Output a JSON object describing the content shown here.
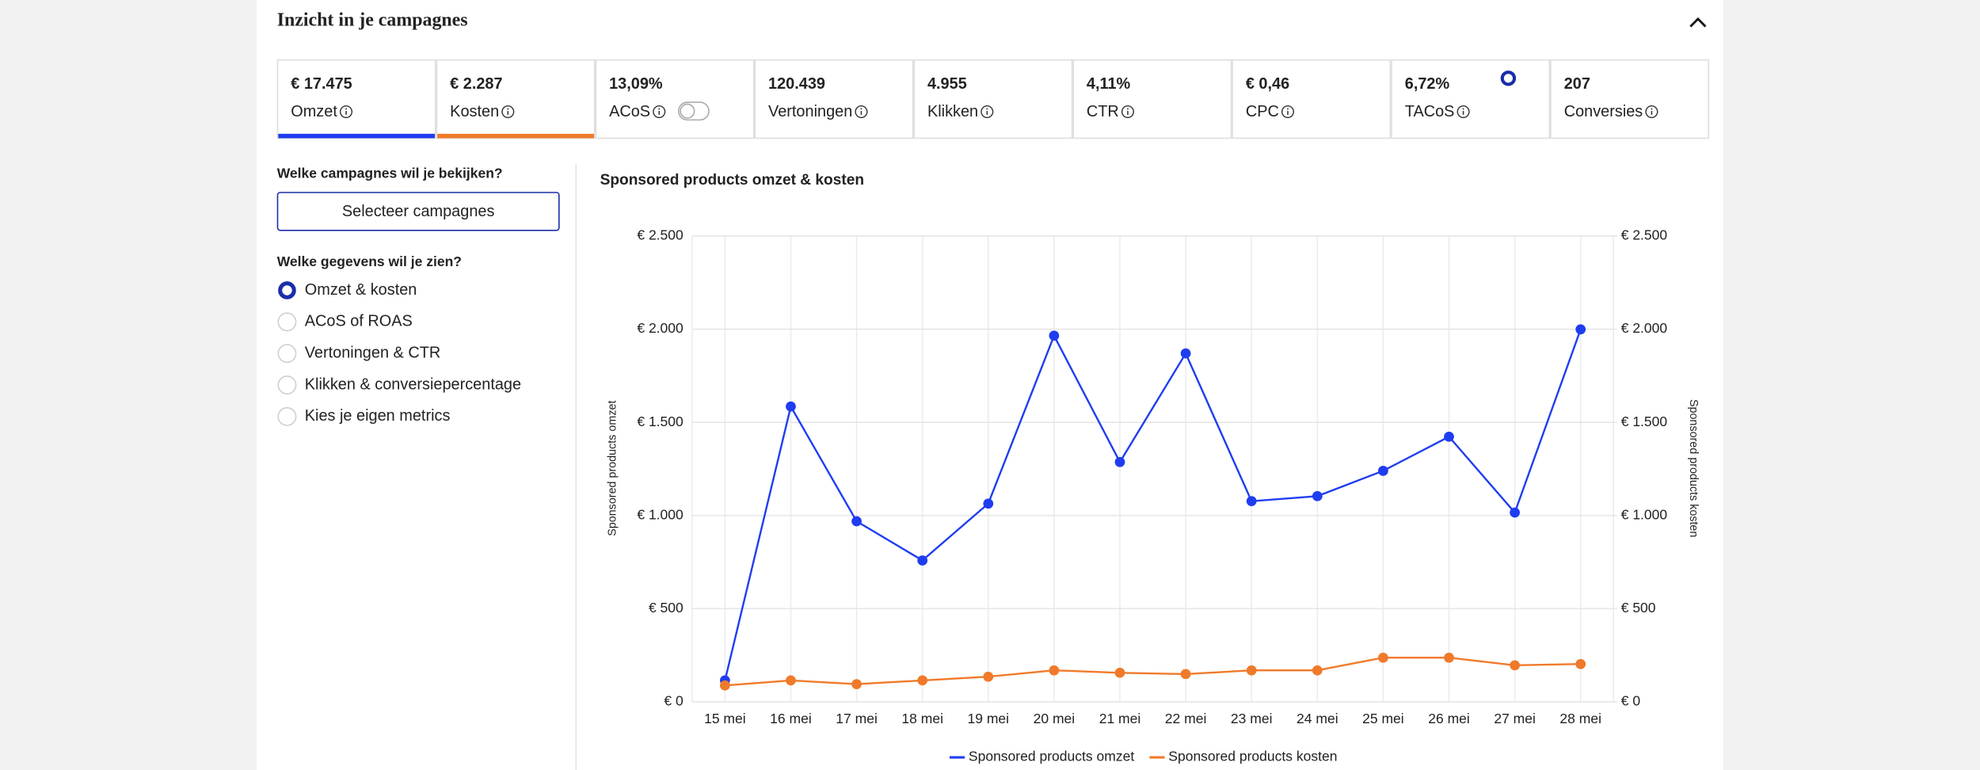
{
  "header": {
    "title": "Inzicht in je campagnes"
  },
  "metrics": [
    {
      "value": "€ 17.475",
      "label": "Omzet"
    },
    {
      "value": "€ 2.287",
      "label": "Kosten"
    },
    {
      "value": "13,09%",
      "label": "ACoS"
    },
    {
      "value": "120.439",
      "label": "Vertoningen"
    },
    {
      "value": "4.955",
      "label": "Klikken"
    },
    {
      "value": "4,11%",
      "label": "CTR"
    },
    {
      "value": "€ 0,46",
      "label": "CPC"
    },
    {
      "value": "6,72%",
      "label": "TACoS"
    },
    {
      "value": "207",
      "label": "Conversies"
    }
  ],
  "sidebar": {
    "campaign_question": "Welke campagnes wil je bekijken?",
    "button": "Selecteer campagnes",
    "data_question": "Welke gegevens wil je zien?",
    "options": [
      "Omzet & kosten",
      "ACoS of ROAS",
      "Vertoningen & CTR",
      "Klikken & conversiepercentage",
      "Kies je eigen metrics"
    ]
  },
  "chart_data": {
    "type": "line",
    "title": "Sponsored products omzet & kosten",
    "categories": [
      "15 mei",
      "16 mei",
      "17 mei",
      "18 mei",
      "19 mei",
      "20 mei",
      "21 mei",
      "22 mei",
      "23 mei",
      "24 mei",
      "25 mei",
      "26 mei",
      "27 mei",
      "28 mei"
    ],
    "series": [
      {
        "name": "Sponsored products omzet",
        "color": "#1f3df0",
        "values": [
          115,
          1585,
          969,
          759,
          1064,
          1965,
          1287,
          1870,
          1077,
          1104,
          1240,
          1423,
          1016,
          1999
        ]
      },
      {
        "name": "Sponsored products kosten",
        "color": "#f07a2a",
        "axis": "y2",
        "values": [
          88,
          115,
          95,
          115,
          135,
          169,
          156,
          149,
          169,
          169,
          237,
          237,
          196,
          203
        ]
      }
    ],
    "y_label": "Sponsored products omzet",
    "y2_label": "Sponsored products kosten",
    "ylim": [
      0,
      2500
    ],
    "yticks": [
      {
        "value": 0,
        "label": "€ 0"
      },
      {
        "value": 500,
        "label": "€ 500"
      },
      {
        "value": 1000,
        "label": "€ 1.000"
      },
      {
        "value": 1500,
        "label": "€ 1.500"
      },
      {
        "value": 2000,
        "label": "€ 2.000"
      },
      {
        "value": 2500,
        "label": "€ 2.500"
      }
    ],
    "y2lim": [
      0,
      2500
    ],
    "y2ticks": [
      {
        "value": 0,
        "label": "€ 0"
      },
      {
        "value": 500,
        "label": "€ 500"
      },
      {
        "value": 1000,
        "label": "€ 1.000"
      },
      {
        "value": 1500,
        "label": "€ 1.500"
      },
      {
        "value": 2000,
        "label": "€ 2.000"
      },
      {
        "value": 2500,
        "label": "€ 2.500"
      }
    ],
    "grid": true,
    "legend": "bottom"
  }
}
